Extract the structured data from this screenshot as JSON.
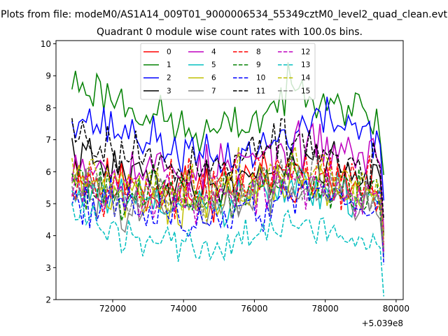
{
  "chart_data": {
    "type": "line",
    "suptitle": "Plots from file: modeM0/AS1A14_009T01_9000006534_55349cztM0_level2_quad_clean.evt",
    "title": "Quadrant 0 module wise count rates with 100.0s bins.",
    "xlabel": "",
    "ylabel": "",
    "x_offset_label": "+5.039e8",
    "xlim": [
      70400,
      80200
    ],
    "ylim": [
      2,
      10.1
    ],
    "x_range": [
      70850,
      79650
    ],
    "x_tick_labels": [
      "72000",
      "74000",
      "76000",
      "78000",
      "80000"
    ],
    "x_tick_values": [
      72000,
      74000,
      76000,
      78000,
      80000
    ],
    "y_tick_labels": [
      "2",
      "3",
      "4",
      "5",
      "6",
      "7",
      "8",
      "9",
      "10"
    ],
    "y_tick_values": [
      2,
      3,
      4,
      5,
      6,
      7,
      8,
      9,
      10
    ],
    "legend_position": "upper-center",
    "series": [
      {
        "name": "0",
        "color": "#ff0000",
        "dash": "solid",
        "base": 5.6,
        "amp": 0.42,
        "seed": 11,
        "anchors": [
          6.3,
          5.6,
          5.5,
          5.3,
          5.4,
          5.7,
          5.8,
          5.8,
          5.6,
          5.5,
          5.1
        ]
      },
      {
        "name": "1",
        "color": "#008000",
        "dash": "solid",
        "base": 7.8,
        "amp": 0.35,
        "seed": 23,
        "anchors": [
          8.8,
          8.5,
          8.0,
          7.6,
          7.1,
          7.3,
          7.7,
          8.5,
          8.6,
          8.0,
          7.4
        ]
      },
      {
        "name": "2",
        "color": "#0000ff",
        "dash": "solid",
        "base": 7.0,
        "amp": 0.35,
        "seed": 37,
        "anchors": [
          7.9,
          7.4,
          7.2,
          6.8,
          6.4,
          6.4,
          6.7,
          7.2,
          7.6,
          7.5,
          7.0
        ]
      },
      {
        "name": "3",
        "color": "#000000",
        "dash": "solid",
        "base": 5.9,
        "amp": 0.35,
        "seed": 41,
        "anchors": [
          6.6,
          6.1,
          5.9,
          5.6,
          5.5,
          5.7,
          6.0,
          6.3,
          6.4,
          6.1,
          5.6
        ]
      },
      {
        "name": "4",
        "color": "#bf00bf",
        "dash": "solid",
        "base": 6.1,
        "amp": 0.38,
        "seed": 53,
        "anchors": [
          6.5,
          6.2,
          6.1,
          6.1,
          6.0,
          6.2,
          6.4,
          6.6,
          6.8,
          6.6,
          6.3
        ]
      },
      {
        "name": "5",
        "color": "#00bfbf",
        "dash": "solid",
        "base": 5.3,
        "amp": 0.35,
        "seed": 61,
        "anchors": [
          5.3,
          5.2,
          5.1,
          4.9,
          4.8,
          4.9,
          5.2,
          5.5,
          5.4,
          5.2,
          5.0
        ]
      },
      {
        "name": "6",
        "color": "#bfbf00",
        "dash": "solid",
        "base": 5.4,
        "amp": 0.38,
        "seed": 71,
        "anchors": [
          5.7,
          5.4,
          5.3,
          5.1,
          4.9,
          5.1,
          5.4,
          5.7,
          5.6,
          5.3,
          5.1
        ]
      },
      {
        "name": "7",
        "color": "#808080",
        "dash": "solid",
        "base": 5.2,
        "amp": 0.35,
        "seed": 83,
        "anchors": [
          5.5,
          5.2,
          5.0,
          4.8,
          4.7,
          4.9,
          5.3,
          5.6,
          5.5,
          5.2,
          4.9
        ]
      },
      {
        "name": "8",
        "color": "#ff0000",
        "dash": "dashed",
        "base": 5.7,
        "amp": 0.38,
        "seed": 97,
        "anchors": [
          6.0,
          5.7,
          5.6,
          5.5,
          5.4,
          5.6,
          5.8,
          6.0,
          5.9,
          5.6,
          5.3
        ]
      },
      {
        "name": "9",
        "color": "#008000",
        "dash": "dashed",
        "base": 5.5,
        "amp": 0.38,
        "seed": 101,
        "anchors": [
          5.8,
          5.5,
          5.4,
          5.3,
          5.1,
          5.2,
          5.6,
          5.8,
          5.6,
          5.4,
          5.2
        ]
      },
      {
        "name": "10",
        "color": "#0000ff",
        "dash": "dashed",
        "base": 5.0,
        "amp": 0.35,
        "seed": 113,
        "anchors": [
          5.3,
          5.0,
          4.9,
          4.6,
          4.5,
          4.6,
          4.9,
          5.2,
          5.3,
          5.1,
          4.8
        ]
      },
      {
        "name": "11",
        "color": "#000000",
        "dash": "dashed",
        "base": 6.4,
        "amp": 0.38,
        "seed": 127,
        "anchors": [
          7.4,
          6.8,
          6.5,
          6.3,
          6.1,
          6.3,
          6.7,
          6.9,
          6.7,
          6.2,
          5.8
        ]
      },
      {
        "name": "12",
        "color": "#bf00bf",
        "dash": "dashed",
        "base": 5.4,
        "amp": 0.35,
        "seed": 131,
        "anchors": [
          5.6,
          5.4,
          5.3,
          5.2,
          5.1,
          5.2,
          5.5,
          5.7,
          5.6,
          5.4,
          5.2
        ]
      },
      {
        "name": "13",
        "color": "#00bfbf",
        "dash": "dashed",
        "base": 4.0,
        "amp": 0.32,
        "seed": 139,
        "anchors": [
          4.6,
          4.3,
          3.9,
          3.8,
          3.7,
          3.7,
          4.0,
          4.3,
          4.3,
          4.0,
          3.6
        ]
      },
      {
        "name": "14",
        "color": "#bfbf00",
        "dash": "dashed",
        "base": 5.8,
        "amp": 0.38,
        "seed": 149,
        "anchors": [
          6.1,
          5.8,
          5.7,
          5.5,
          5.4,
          5.6,
          5.8,
          6.1,
          6.1,
          5.8,
          5.5
        ]
      },
      {
        "name": "15",
        "color": "#808080",
        "dash": "dashed",
        "base": 5.5,
        "amp": 0.35,
        "seed": 157,
        "anchors": [
          5.8,
          5.5,
          5.3,
          5.2,
          5.1,
          5.2,
          5.5,
          5.8,
          5.7,
          5.4,
          5.1
        ]
      }
    ]
  }
}
